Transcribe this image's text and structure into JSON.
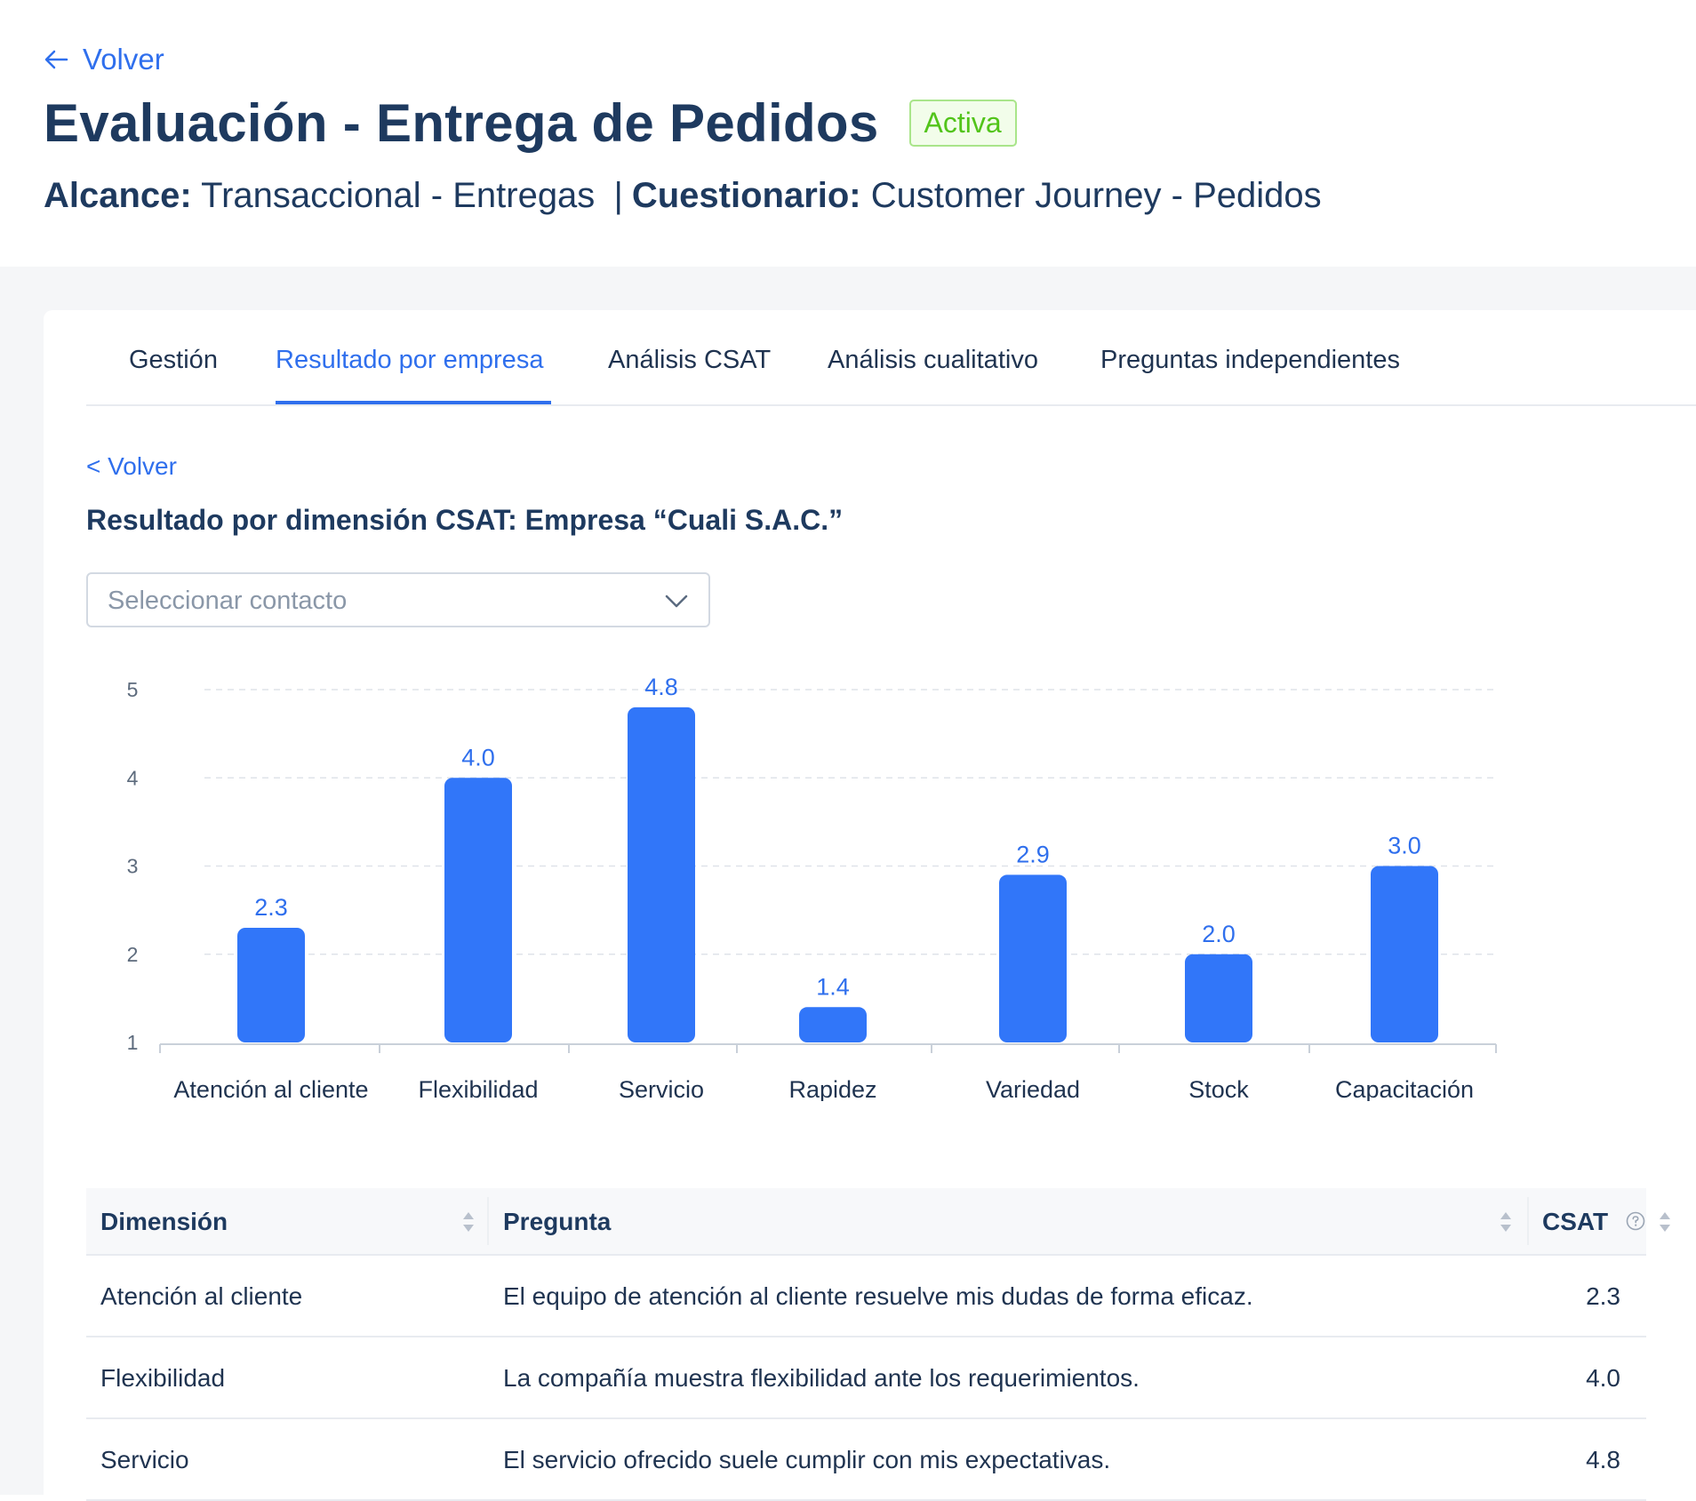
{
  "header": {
    "back_label": "Volver",
    "title": "Evaluación - Entrega de Pedidos",
    "status": "Activa",
    "scope_label": "Alcance:",
    "scope_value": "Transaccional - Entregas",
    "separator": "|",
    "questionnaire_label": "Cuestionario:",
    "questionnaire_value": "Customer Journey - Pedidos"
  },
  "tabs": [
    {
      "label": "Gestión"
    },
    {
      "label": "Resultado por empresa"
    },
    {
      "label": "Análisis CSAT"
    },
    {
      "label": "Análisis cualitativo"
    },
    {
      "label": "Preguntas independientes"
    }
  ],
  "active_tab": "Resultado por empresa",
  "content": {
    "back_label": "< Volver",
    "section_title": "Resultado por dimensión CSAT: Empresa “Cuali S.A.C.”",
    "contact_select": {
      "placeholder": "Seleccionar contacto",
      "icon": "chevron-down-icon"
    }
  },
  "colors": {
    "accent": "#2f6fed",
    "bar": "#3176f9",
    "badge_green": "#52c41a",
    "title": "#1e3a5f"
  },
  "chart_data": {
    "type": "bar",
    "categories": [
      "Atención al cliente",
      "Flexibilidad",
      "Servicio",
      "Rapidez",
      "Variedad",
      "Stock",
      "Capacitación"
    ],
    "values": [
      2.3,
      4.0,
      4.8,
      1.4,
      2.9,
      2.0,
      3.0
    ],
    "value_labels": [
      "2.3",
      "4.0",
      "4.8",
      "1.4",
      "2.9",
      "2.0",
      "3.0"
    ],
    "ylim": [
      1,
      5
    ],
    "yticks": [
      "1",
      "2",
      "3",
      "4",
      "5"
    ],
    "grid": true,
    "title": "",
    "xlabel": "",
    "ylabel": ""
  },
  "table": {
    "headers": {
      "dimension": "Dimensión",
      "question": "Pregunta",
      "csat": "CSAT"
    },
    "rows": [
      {
        "dimension": "Atención al cliente",
        "question": "El equipo de atención al cliente resuelve mis dudas de forma eficaz.",
        "csat": "2.3"
      },
      {
        "dimension": "Flexibilidad",
        "question": "La compañía muestra flexibilidad ante los requerimientos.",
        "csat": "4.0"
      },
      {
        "dimension": "Servicio",
        "question": "El servicio ofrecido suele cumplir con mis expectativas.",
        "csat": "4.8"
      }
    ]
  }
}
